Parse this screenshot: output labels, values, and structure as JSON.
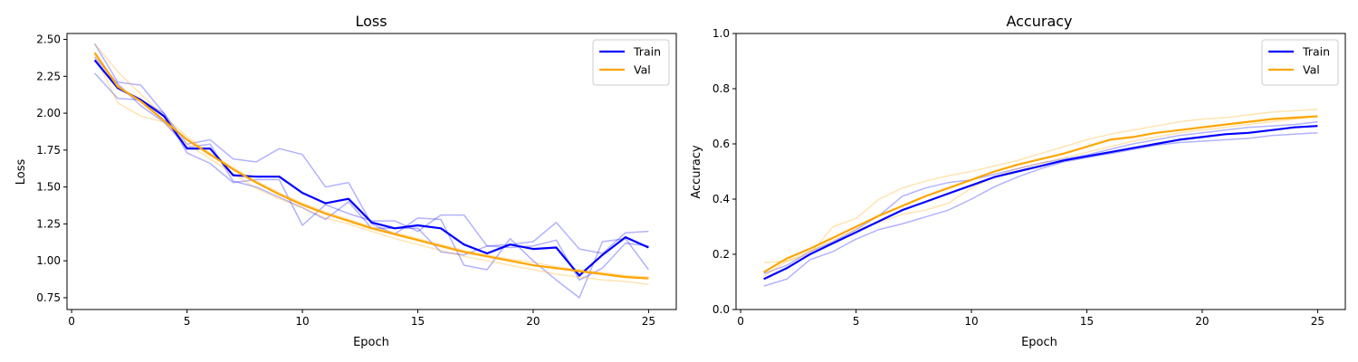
{
  "chart_data": [
    {
      "type": "line",
      "title": "Loss",
      "xlabel": "Epoch",
      "ylabel": "Loss",
      "xlim": [
        -0.2,
        26.2
      ],
      "ylim": [
        0.67,
        2.54
      ],
      "xticks": [
        0,
        5,
        10,
        15,
        20,
        25
      ],
      "yticks": [
        0.75,
        1.0,
        1.25,
        1.5,
        1.75,
        2.0,
        2.25,
        2.5
      ],
      "ytick_labels": [
        "0.75",
        "1.00",
        "1.25",
        "1.50",
        "1.75",
        "2.00",
        "2.25",
        "2.50"
      ],
      "legend_position": "top-right",
      "x": [
        1,
        2,
        3,
        4,
        5,
        6,
        7,
        8,
        9,
        10,
        11,
        12,
        13,
        14,
        15,
        16,
        17,
        18,
        19,
        20,
        21,
        22,
        23,
        24,
        25
      ],
      "series": [
        {
          "name": "Train",
          "color": "#0000ff",
          "emphasis": true,
          "values": [
            2.36,
            2.17,
            2.09,
            1.98,
            1.76,
            1.76,
            1.58,
            1.57,
            1.57,
            1.46,
            1.39,
            1.42,
            1.26,
            1.22,
            1.24,
            1.22,
            1.11,
            1.05,
            1.11,
            1.08,
            1.09,
            0.9,
            1.04,
            1.16,
            1.09
          ]
        },
        {
          "color": "#0000ff",
          "emphasis": false,
          "values": [
            2.47,
            2.21,
            2.19,
            2.0,
            1.73,
            1.66,
            1.53,
            1.55,
            1.55,
            1.24,
            1.38,
            1.32,
            1.27,
            1.27,
            1.2,
            1.31,
            1.31,
            1.1,
            1.11,
            1.13,
            1.26,
            1.08,
            1.05,
            1.19,
            1.2
          ]
        },
        {
          "color": "#0000ff",
          "emphasis": false,
          "values": [
            2.27,
            2.1,
            2.09,
            2.0,
            1.79,
            1.82,
            1.69,
            1.67,
            1.76,
            1.72,
            1.5,
            1.53,
            1.25,
            1.18,
            1.29,
            1.28,
            0.97,
            0.94,
            1.15,
            1.0,
            0.87,
            0.75,
            1.13,
            1.15,
            0.94
          ]
        },
        {
          "color": "#0000ff",
          "emphasis": false,
          "values": [
            2.38,
            2.2,
            2.05,
            1.94,
            1.77,
            1.79,
            1.54,
            1.5,
            1.43,
            1.36,
            1.28,
            1.4,
            1.22,
            1.22,
            1.22,
            1.06,
            1.04,
            1.1,
            1.09,
            1.1,
            1.14,
            0.87,
            0.95,
            1.12,
            1.1
          ]
        },
        {
          "name": "Val",
          "color": "#ffa500",
          "emphasis": true,
          "values": [
            2.41,
            2.18,
            2.08,
            1.95,
            1.82,
            1.72,
            1.62,
            1.53,
            1.45,
            1.38,
            1.32,
            1.27,
            1.22,
            1.18,
            1.14,
            1.1,
            1.06,
            1.03,
            1.0,
            0.97,
            0.95,
            0.93,
            0.91,
            0.89,
            0.88
          ]
        },
        {
          "color": "#ffa500",
          "emphasis": false,
          "values": [
            2.47,
            2.28,
            2.13,
            1.98,
            1.84,
            1.73,
            1.63,
            1.54,
            1.46,
            1.39,
            1.33,
            1.28,
            1.23,
            1.19,
            1.15,
            1.11,
            1.07,
            1.04,
            1.01,
            0.99,
            0.96,
            0.94,
            0.92,
            0.9,
            0.89
          ]
        },
        {
          "color": "#ffa500",
          "emphasis": false,
          "values": [
            2.39,
            2.07,
            1.98,
            1.94,
            1.79,
            1.69,
            1.59,
            1.49,
            1.42,
            1.36,
            1.29,
            1.25,
            1.2,
            1.15,
            1.11,
            1.07,
            1.03,
            1.0,
            0.97,
            0.94,
            0.91,
            0.89,
            0.87,
            0.86,
            0.84
          ]
        }
      ]
    },
    {
      "type": "line",
      "title": "Accuracy",
      "xlabel": "Epoch",
      "ylabel": "Accuracy",
      "xlim": [
        -0.2,
        26.2
      ],
      "ylim": [
        0.0,
        1.0
      ],
      "xticks": [
        0,
        5,
        10,
        15,
        20,
        25
      ],
      "yticks": [
        0.0,
        0.2,
        0.4,
        0.6,
        0.8,
        1.0
      ],
      "ytick_labels": [
        "0.0",
        "0.2",
        "0.4",
        "0.6",
        "0.8",
        "1.0"
      ],
      "legend_position": "top-right",
      "x": [
        1,
        2,
        3,
        4,
        5,
        6,
        7,
        8,
        9,
        10,
        11,
        12,
        13,
        14,
        15,
        16,
        17,
        18,
        19,
        20,
        21,
        22,
        23,
        24,
        25
      ],
      "series": [
        {
          "name": "Train",
          "color": "#0000ff",
          "emphasis": true,
          "values": [
            0.11,
            0.15,
            0.2,
            0.24,
            0.28,
            0.32,
            0.36,
            0.39,
            0.42,
            0.45,
            0.48,
            0.5,
            0.52,
            0.54,
            0.555,
            0.57,
            0.585,
            0.6,
            0.615,
            0.625,
            0.635,
            0.64,
            0.65,
            0.66,
            0.665
          ]
        },
        {
          "color": "#0000ff",
          "emphasis": false,
          "values": [
            0.085,
            0.11,
            0.18,
            0.21,
            0.255,
            0.29,
            0.31,
            0.335,
            0.36,
            0.4,
            0.445,
            0.48,
            0.51,
            0.535,
            0.55,
            0.565,
            0.58,
            0.595,
            0.605,
            0.61,
            0.615,
            0.62,
            0.63,
            0.635,
            0.64
          ]
        },
        {
          "color": "#0000ff",
          "emphasis": false,
          "values": [
            0.13,
            0.16,
            0.21,
            0.245,
            0.29,
            0.34,
            0.41,
            0.44,
            0.46,
            0.47,
            0.49,
            0.51,
            0.53,
            0.545,
            0.56,
            0.58,
            0.6,
            0.615,
            0.63,
            0.64,
            0.65,
            0.66,
            0.665,
            0.67,
            0.68
          ]
        },
        {
          "name": "Val",
          "color": "#ffa500",
          "emphasis": true,
          "values": [
            0.135,
            0.185,
            0.22,
            0.26,
            0.3,
            0.34,
            0.375,
            0.41,
            0.44,
            0.47,
            0.5,
            0.525,
            0.545,
            0.565,
            0.59,
            0.615,
            0.625,
            0.64,
            0.65,
            0.66,
            0.67,
            0.68,
            0.69,
            0.695,
            0.7
          ]
        },
        {
          "color": "#ffa500",
          "emphasis": false,
          "values": [
            0.17,
            0.175,
            0.2,
            0.3,
            0.33,
            0.4,
            0.44,
            0.465,
            0.485,
            0.5,
            0.52,
            0.54,
            0.565,
            0.59,
            0.615,
            0.635,
            0.65,
            0.665,
            0.68,
            0.69,
            0.695,
            0.705,
            0.715,
            0.72,
            0.725
          ]
        },
        {
          "color": "#ffa500",
          "emphasis": false,
          "values": [
            0.12,
            0.175,
            0.21,
            0.25,
            0.29,
            0.315,
            0.345,
            0.36,
            0.385,
            0.44,
            0.48,
            0.51,
            0.53,
            0.55,
            0.57,
            0.59,
            0.61,
            0.625,
            0.64,
            0.65,
            0.66,
            0.67,
            0.68,
            0.69,
            0.7
          ]
        }
      ]
    }
  ]
}
